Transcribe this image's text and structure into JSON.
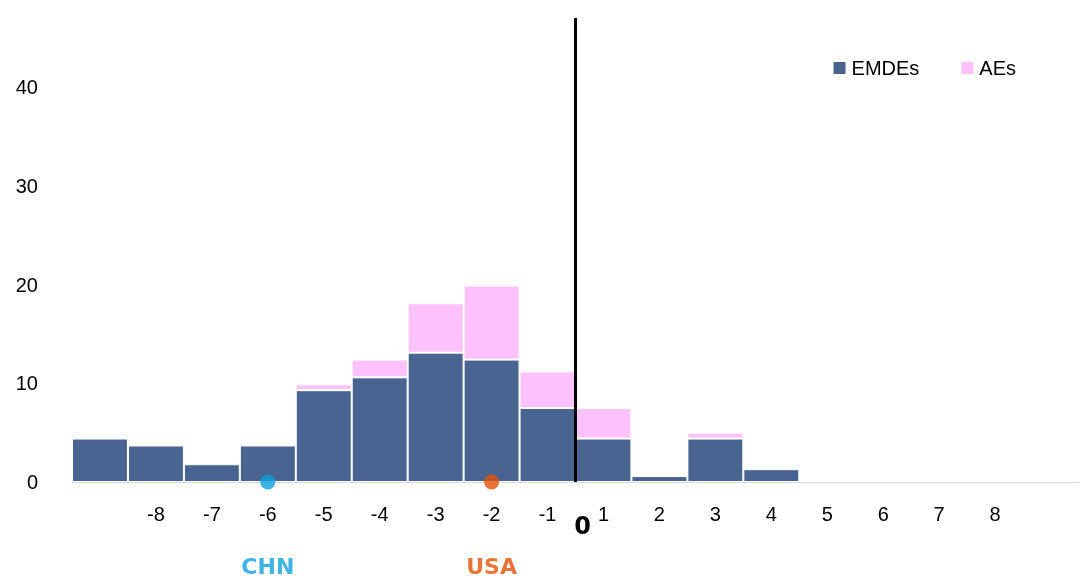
{
  "chart_data": {
    "type": "bar",
    "stacked": true,
    "categories": [
      null,
      "-8",
      "-7",
      "-6",
      "-5",
      "-4",
      "-3",
      "-2",
      "-1",
      "1",
      "2",
      "3",
      "4",
      "5",
      "6",
      "7",
      "8",
      null
    ],
    "series": [
      {
        "name": "EMDEs",
        "color": "#4a6491",
        "values": [
          4.4,
          3.7,
          1.8,
          3.7,
          9.3,
          10.6,
          13.1,
          12.4,
          7.5,
          4.4,
          0.6,
          4.4,
          1.3,
          0,
          0,
          0,
          0,
          0
        ]
      },
      {
        "name": "AEs",
        "color": "#fdc1fd",
        "values": [
          0,
          0,
          0,
          0,
          0.6,
          1.8,
          5.0,
          7.5,
          3.7,
          3.1,
          0,
          0.6,
          0,
          0,
          0,
          0,
          0,
          0
        ]
      },
      {
        "name": "CHN",
        "type": "scatter",
        "color": "#0ea0e0",
        "x": [
          "-6"
        ],
        "values": [
          0
        ]
      },
      {
        "name": "USA",
        "type": "scatter",
        "color": "#e35205",
        "x": [
          "-2"
        ],
        "values": [
          0
        ]
      }
    ],
    "ylim": [
      0,
      47
    ],
    "yticks": [
      0,
      10,
      20,
      30,
      40
    ],
    "annotations": [
      "0"
    ],
    "grid": false,
    "legend": "top right",
    "marker": "circle"
  }
}
